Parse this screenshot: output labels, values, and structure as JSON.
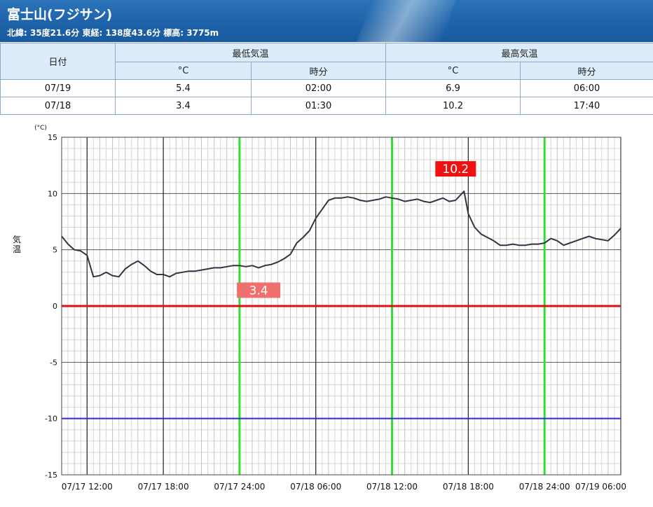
{
  "header": {
    "title": "富士山(フジサン)",
    "subtitle": "北緯: 35度21.6分 東経: 138度43.6分 標高: 3775m"
  },
  "table": {
    "date_header": "日付",
    "min_header": "最低気温",
    "max_header": "最高気温",
    "unit_c": "°C",
    "time_label": "時分",
    "rows": [
      {
        "date": "07/19",
        "min": "5.4",
        "min_time": "02:00",
        "max": "6.9",
        "max_time": "06:00"
      },
      {
        "date": "07/18",
        "min": "3.4",
        "min_time": "01:30",
        "max": "10.2",
        "max_time": "17:40"
      }
    ]
  },
  "colors": {
    "header_blue": "#1d62a8",
    "table_header_bg": "#dcecfa",
    "zero_line": "#dd1111",
    "minus10_line": "#2b2bd0",
    "day_marker": "#33dd33",
    "series": "#333344",
    "max_label_bg": "#ee1111",
    "min_label_bg": "#f07070"
  },
  "chart_data": {
    "type": "line",
    "unit_label": "(°C)",
    "ylabel": "気温",
    "ylim": [
      -15,
      15
    ],
    "yticks": [
      15,
      10,
      5,
      0,
      -5,
      -10,
      -15
    ],
    "x_start": "07/17 10:00",
    "x_end": "07/19 06:00",
    "xticks": [
      "07/17 12:00",
      "07/17 18:00",
      "07/17 24:00",
      "07/18 06:00",
      "07/18 12:00",
      "07/18 18:00",
      "07/18 24:00",
      "07/19 06:00"
    ],
    "day_markers": [
      "07/17 24:00",
      "07/18 12:00",
      "07/18 24:00"
    ],
    "reference_lines": [
      0,
      -10
    ],
    "grid": true,
    "annotations": [
      {
        "text": "10.2",
        "x": "07/18 17:40",
        "y": 10.2,
        "kind": "max"
      },
      {
        "text": "3.4",
        "x": "07/18 01:30",
        "y": 3.4,
        "kind": "min"
      }
    ],
    "series": [
      {
        "x": [
          "07/17 10:00",
          "07/17 10:30",
          "07/17 11:00",
          "07/17 11:30",
          "07/17 12:00",
          "07/17 12:30",
          "07/17 13:00",
          "07/17 13:30",
          "07/17 14:00",
          "07/17 14:30",
          "07/17 15:00",
          "07/17 15:30",
          "07/17 16:00",
          "07/17 16:30",
          "07/17 17:00",
          "07/17 17:30",
          "07/17 18:00",
          "07/17 18:30",
          "07/17 19:00",
          "07/17 19:30",
          "07/17 20:00",
          "07/17 20:30",
          "07/17 21:00",
          "07/17 21:30",
          "07/17 22:00",
          "07/17 22:30",
          "07/17 23:00",
          "07/17 23:30",
          "07/17 24:00",
          "07/18 00:30",
          "07/18 01:00",
          "07/18 01:30",
          "07/18 02:00",
          "07/18 02:30",
          "07/18 03:00",
          "07/18 03:30",
          "07/18 04:00",
          "07/18 04:30",
          "07/18 05:00",
          "07/18 05:30",
          "07/18 06:00",
          "07/18 06:30",
          "07/18 07:00",
          "07/18 07:30",
          "07/18 08:00",
          "07/18 08:30",
          "07/18 09:00",
          "07/18 09:30",
          "07/18 10:00",
          "07/18 10:30",
          "07/18 11:00",
          "07/18 11:30",
          "07/18 12:00",
          "07/18 12:30",
          "07/18 13:00",
          "07/18 13:30",
          "07/18 14:00",
          "07/18 14:30",
          "07/18 15:00",
          "07/18 15:30",
          "07/18 16:00",
          "07/18 16:30",
          "07/18 17:00",
          "07/18 17:30",
          "07/18 17:40",
          "07/18 18:00",
          "07/18 18:30",
          "07/18 19:00",
          "07/18 19:30",
          "07/18 20:00",
          "07/18 20:30",
          "07/18 21:00",
          "07/18 21:30",
          "07/18 22:00",
          "07/18 22:30",
          "07/18 23:00",
          "07/18 23:30",
          "07/18 24:00",
          "07/19 00:30",
          "07/19 01:00",
          "07/19 01:30",
          "07/19 02:00",
          "07/19 02:30",
          "07/19 03:00",
          "07/19 03:30",
          "07/19 04:00",
          "07/19 04:30",
          "07/19 05:00",
          "07/19 05:30",
          "07/19 06:00"
        ],
        "y": [
          6.2,
          5.5,
          5.0,
          4.9,
          4.5,
          2.6,
          2.7,
          3.0,
          2.7,
          2.6,
          3.3,
          3.7,
          4.0,
          3.6,
          3.1,
          2.8,
          2.8,
          2.6,
          2.9,
          3.0,
          3.1,
          3.1,
          3.2,
          3.3,
          3.4,
          3.4,
          3.5,
          3.6,
          3.6,
          3.5,
          3.6,
          3.4,
          3.6,
          3.7,
          3.9,
          4.2,
          4.6,
          5.6,
          6.1,
          6.7,
          7.8,
          8.6,
          9.4,
          9.6,
          9.6,
          9.7,
          9.6,
          9.4,
          9.3,
          9.4,
          9.5,
          9.7,
          9.6,
          9.5,
          9.3,
          9.4,
          9.5,
          9.3,
          9.2,
          9.4,
          9.6,
          9.3,
          9.4,
          10.0,
          10.2,
          8.2,
          7.0,
          6.4,
          6.1,
          5.8,
          5.4,
          5.4,
          5.5,
          5.4,
          5.4,
          5.5,
          5.5,
          5.6,
          6.0,
          5.8,
          5.4,
          5.6,
          5.8,
          6.0,
          6.2,
          6.0,
          5.9,
          5.8,
          6.3,
          6.9
        ]
      }
    ]
  }
}
